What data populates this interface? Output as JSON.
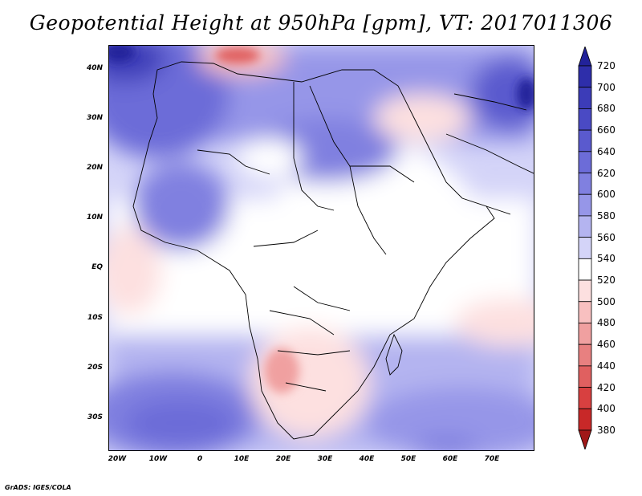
{
  "title": "Geopotential Height at 950hPa [gpm], VT: 2017011306",
  "footer": "GrADS: IGES/COLA",
  "y_axis_labels": [
    "40N",
    "30N",
    "20N",
    "10N",
    "EQ",
    "10S",
    "20S",
    "30S"
  ],
  "x_axis_labels": [
    "20W",
    "10W",
    "0",
    "10E",
    "20E",
    "30E",
    "40E",
    "50E",
    "60E",
    "70E"
  ],
  "colorbar": {
    "levels": [
      "720",
      "700",
      "680",
      "660",
      "640",
      "620",
      "600",
      "580",
      "560",
      "540",
      "520",
      "500",
      "480",
      "460",
      "440",
      "420",
      "400",
      "380"
    ],
    "colors": [
      "#22229a",
      "#2e2eaa",
      "#3c3cb8",
      "#4a4ac4",
      "#5a5ace",
      "#6c6cd8",
      "#8080e0",
      "#9696e8",
      "#b4b4f0",
      "#d4d4f8",
      "#ffffff",
      "#fde0e0",
      "#f8c0c0",
      "#f0a0a0",
      "#e88080",
      "#e06060",
      "#d84040",
      "#c82828",
      "#a01818"
    ]
  },
  "map": {
    "lon_range": [
      "20W",
      "80E"
    ],
    "lat_range": [
      "35S",
      "45N"
    ]
  }
}
